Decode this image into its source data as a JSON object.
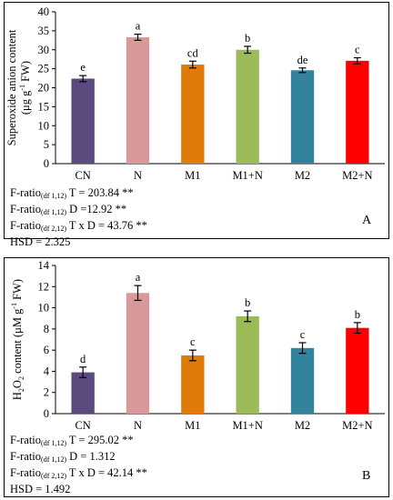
{
  "chart_data": [
    {
      "type": "bar",
      "panel_label": "A",
      "categories": [
        "CN",
        "N",
        "M1",
        "M1+N",
        "M2",
        "M2+N"
      ],
      "values": [
        22.4,
        33.3,
        26.1,
        30.0,
        24.6,
        27.1
      ],
      "errors": [
        0.8,
        0.8,
        0.9,
        0.9,
        0.6,
        0.8
      ],
      "significance_letters": [
        "e",
        "a",
        "cd",
        "b",
        "de",
        "c"
      ],
      "colors": [
        "#5b4a7d",
        "#d9999b",
        "#e07a0a",
        "#9bbb59",
        "#31849b",
        "#ff0000"
      ],
      "ylabel_main": "Superoxide anion content",
      "ylabel_unit_pre": "(μg g",
      "ylabel_unit_sup": "-1",
      "ylabel_unit_post": " FW)",
      "ylim": [
        0,
        40
      ],
      "yticks": [
        0,
        5,
        10,
        15,
        20,
        25,
        30,
        35,
        40
      ],
      "grid": false,
      "stats": [
        {
          "pre": "F-ratio",
          "sub": "(df 1,12)",
          "post": " T = 203.84 **"
        },
        {
          "pre": "F-ratio",
          "sub": "(df 1,12)",
          "post": " D =12.92 **"
        },
        {
          "pre": "F-ratio",
          "sub": "(df 2,12)",
          "post": " T x D = 43.76 **"
        },
        {
          "pre": "HSD = 2.325",
          "sub": "",
          "post": ""
        }
      ]
    },
    {
      "type": "bar",
      "panel_label": "B",
      "categories": [
        "CN",
        "N",
        "M1",
        "M1+N",
        "M2",
        "M2+N"
      ],
      "values": [
        3.9,
        11.4,
        5.5,
        9.2,
        6.2,
        8.1
      ],
      "errors": [
        0.5,
        0.7,
        0.5,
        0.5,
        0.5,
        0.5
      ],
      "significance_letters": [
        "d",
        "a",
        "c",
        "b",
        "c",
        "b"
      ],
      "colors": [
        "#5b4a7d",
        "#d9999b",
        "#e07a0a",
        "#9bbb59",
        "#31849b",
        "#ff0000"
      ],
      "ylabel_main_pre": "H",
      "ylabel_main_sub1": "2",
      "ylabel_main_mid": "O",
      "ylabel_main_sub2": "2",
      "ylabel_main_post": " content (μM g",
      "ylabel_unit_sup": "-1",
      "ylabel_unit_post": " FW)",
      "ylim": [
        0,
        14
      ],
      "yticks": [
        0,
        2,
        4,
        6,
        8,
        10,
        12,
        14
      ],
      "grid": false,
      "stats": [
        {
          "pre": "F-ratio",
          "sub": "(df 1,12)",
          "post": " T = 295.02 **"
        },
        {
          "pre": "F-ratio",
          "sub": "(df 1,12)",
          "post": " D = 1.312"
        },
        {
          "pre": "F-ratio",
          "sub": "(df 2,12)",
          "post": " T x D = 42.14 **"
        },
        {
          "pre": "HSD = 1.492",
          "sub": "",
          "post": ""
        }
      ]
    }
  ]
}
